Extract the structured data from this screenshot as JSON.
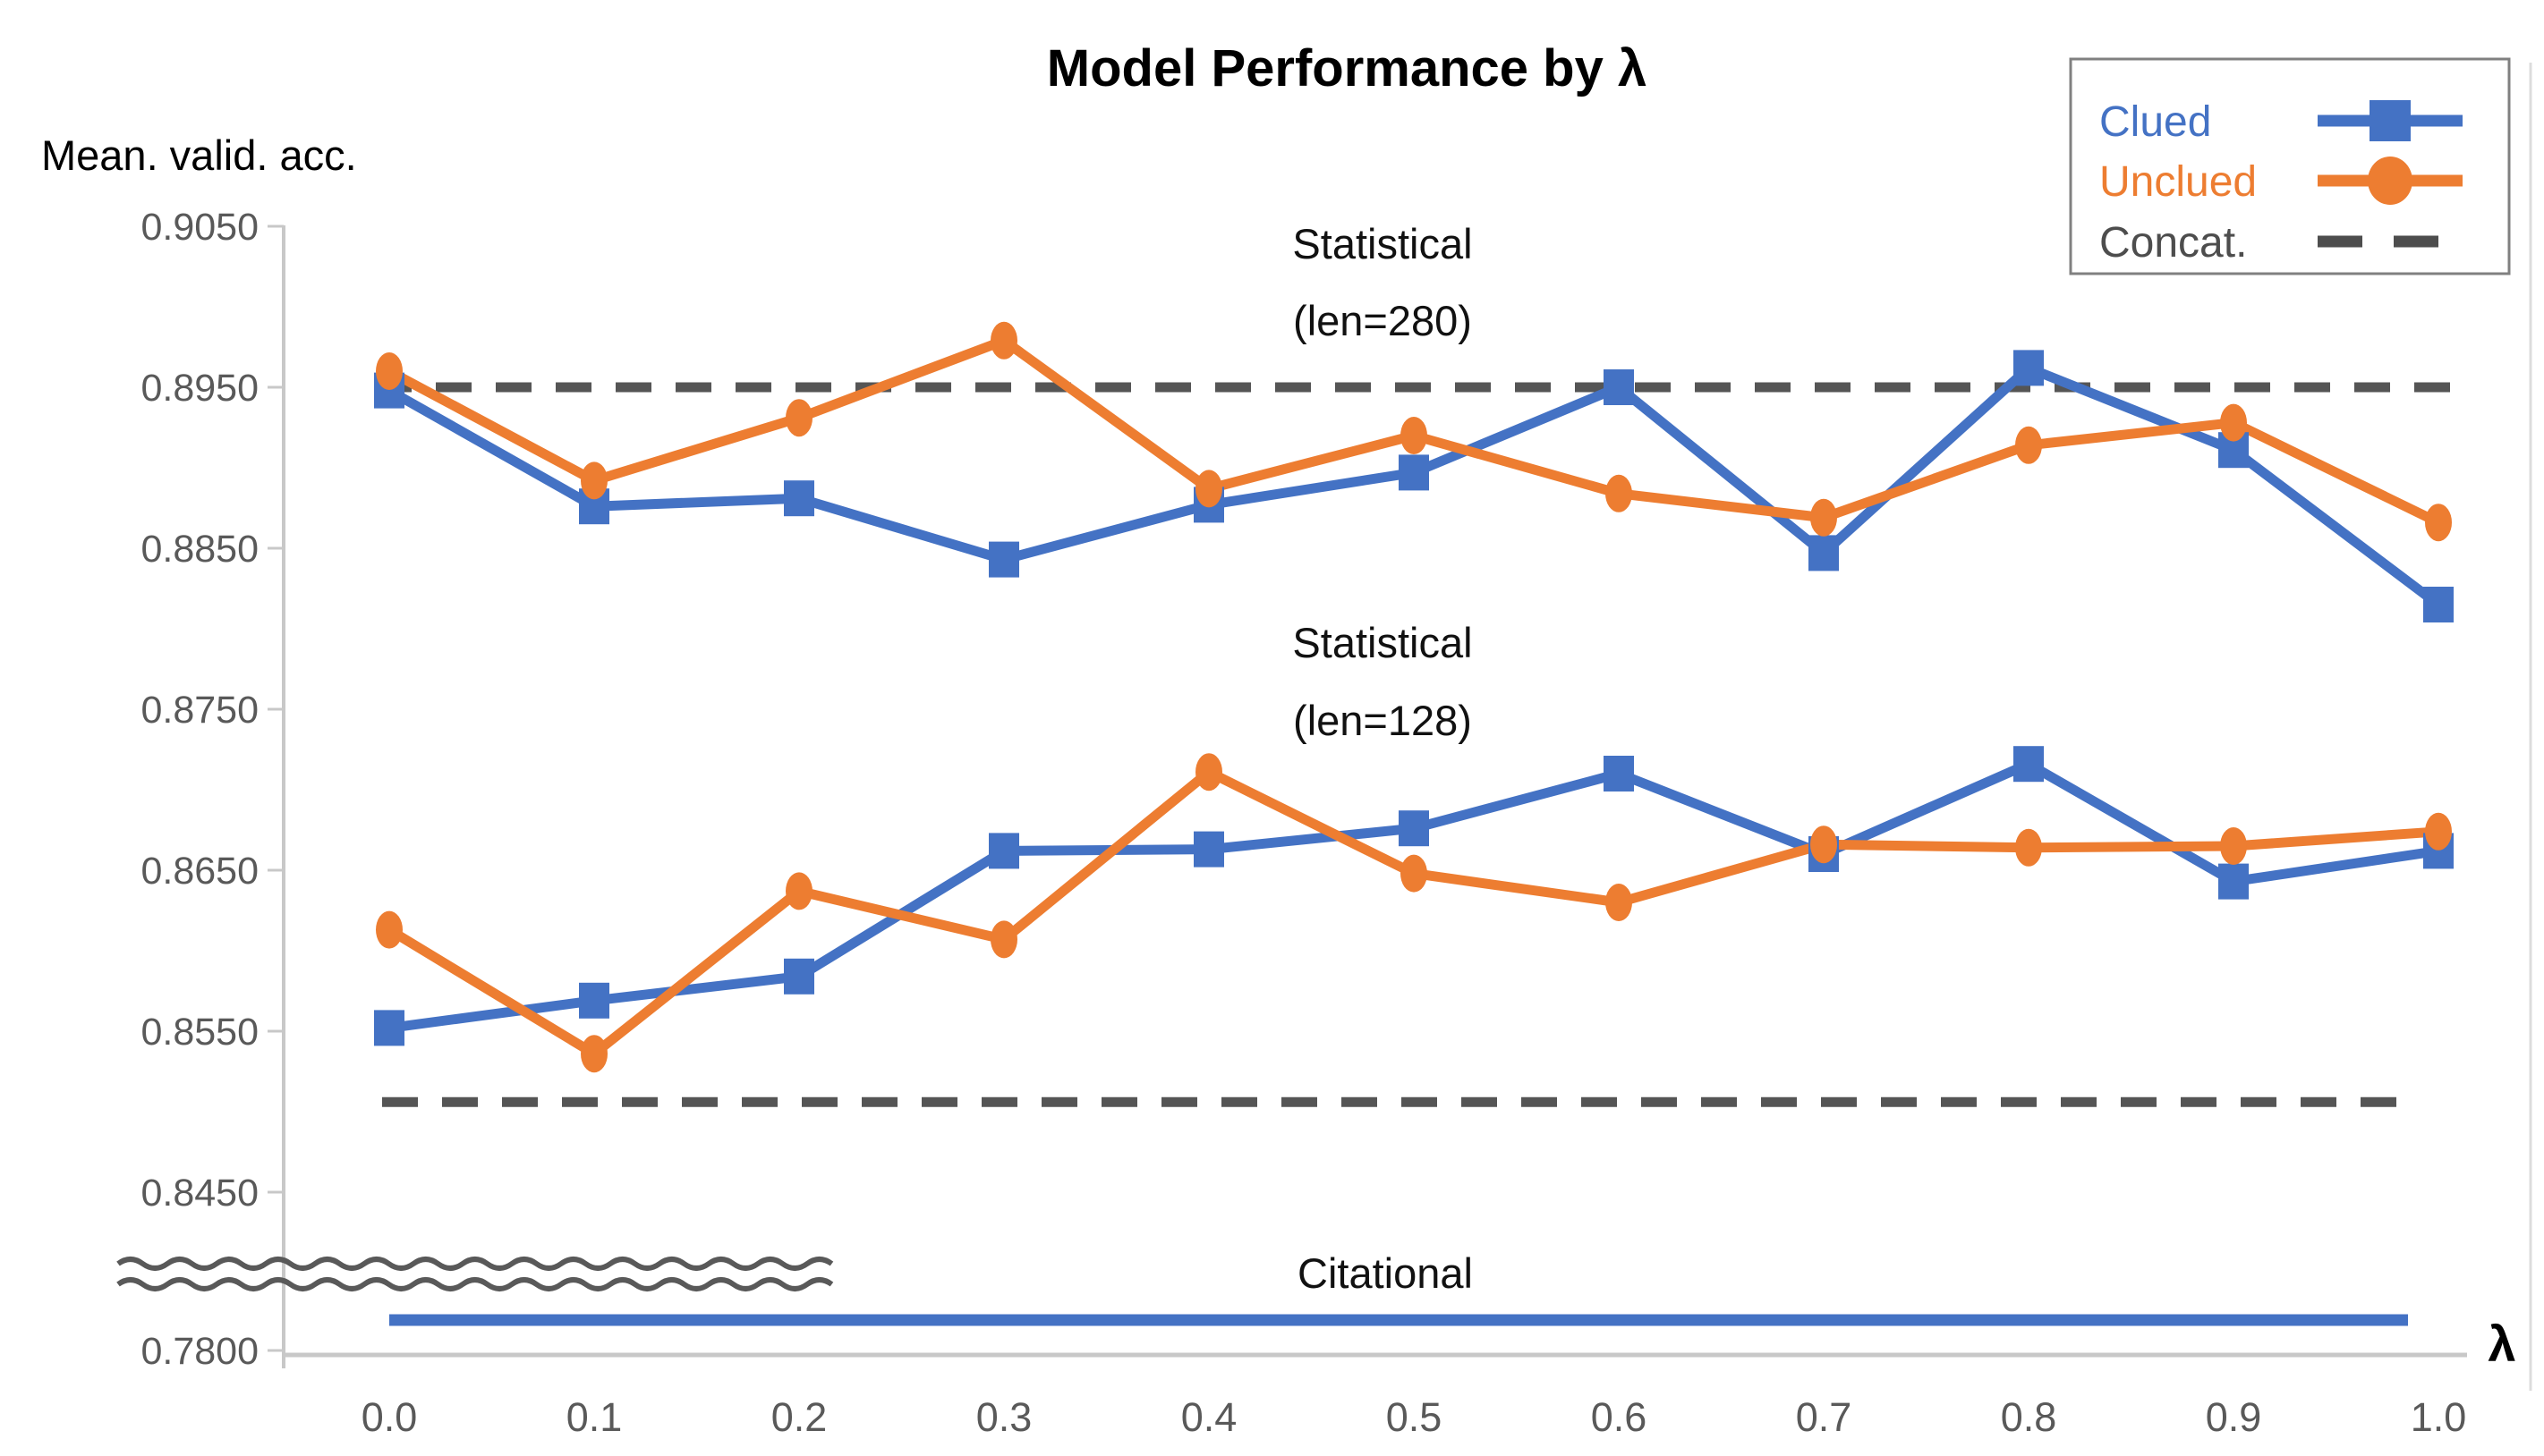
{
  "title": "Model Performance by λ",
  "y_axis": {
    "label": "Mean. valid. acc.",
    "ticks": [
      "0.9050",
      "0.8950",
      "0.8850",
      "0.8750",
      "0.8650",
      "0.8550",
      "0.8450",
      "0.7800"
    ],
    "broken_axis_between": [
      "0.8450",
      "0.7800"
    ]
  },
  "x_axis": {
    "label": "λ",
    "ticks": [
      "0.0",
      "0.1",
      "0.2",
      "0.3",
      "0.4",
      "0.5",
      "0.6",
      "0.7",
      "0.8",
      "0.9",
      "1.0"
    ]
  },
  "legend": [
    {
      "label": "Clued",
      "color": "#4472C4",
      "marker": "square",
      "line": "solid"
    },
    {
      "label": "Unclued",
      "color": "#ED7D31",
      "marker": "circle",
      "line": "solid"
    },
    {
      "label": "Concat.",
      "color": "#4D4D4D",
      "marker": "none",
      "line": "dashed"
    }
  ],
  "annotations": {
    "stat280": {
      "line1": "Statistical",
      "line2": "(len=280)"
    },
    "stat128": {
      "line1": "Statistical",
      "line2": "(len=128)"
    },
    "citational": {
      "label": "Citational"
    }
  },
  "chart_data": {
    "type": "line",
    "xlabel": "λ",
    "ylabel": "Mean. valid. acc.",
    "x": [
      0.0,
      0.1,
      0.2,
      0.3,
      0.4,
      0.5,
      0.6,
      0.7,
      0.8,
      0.9,
      1.0
    ],
    "ylim_top_segment": [
      0.84,
      0.905
    ],
    "axis_break": true,
    "series": [
      {
        "name": "Clued (Statistical len=280)",
        "color": "#4472C4",
        "marker": "square",
        "values": [
          0.8948,
          0.8876,
          0.8881,
          0.8843,
          0.8877,
          0.8897,
          0.895,
          0.8847,
          0.8962,
          0.8911,
          0.8815
        ]
      },
      {
        "name": "Unclued (Statistical len=280)",
        "color": "#ED7D31",
        "marker": "circle",
        "values": [
          0.896,
          0.8892,
          0.8931,
          0.8979,
          0.8887,
          0.892,
          0.8884,
          0.8869,
          0.8914,
          0.8928,
          0.8866
        ]
      },
      {
        "name": "Clued (Statistical len=128)",
        "color": "#4472C4",
        "marker": "square",
        "values": [
          0.8552,
          0.8569,
          0.8584,
          0.8662,
          0.8663,
          0.8676,
          0.871,
          0.866,
          0.8716,
          0.8643,
          0.8662
        ]
      },
      {
        "name": "Unclued (Statistical len=128)",
        "color": "#ED7D31",
        "marker": "circle",
        "values": [
          0.8613,
          0.8536,
          0.8637,
          0.8607,
          0.8711,
          0.8648,
          0.863,
          0.8666,
          0.8664,
          0.8665,
          0.8674
        ]
      }
    ],
    "reference_lines": [
      {
        "name": "Concat. (len=280)",
        "style": "dashed",
        "color": "#555555",
        "value": 0.895
      },
      {
        "name": "Concat. (len=128)",
        "style": "dashed",
        "color": "#555555",
        "value": 0.8506
      }
    ],
    "citational_line": {
      "name": "Citational",
      "color": "#4472C4",
      "approx_value": 0.782,
      "note": "flat line drawn below the axis break"
    }
  }
}
